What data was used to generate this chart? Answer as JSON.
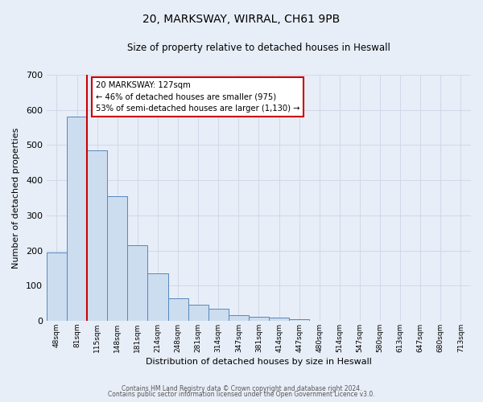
{
  "title": "20, MARKSWAY, WIRRAL, CH61 9PB",
  "subtitle": "Size of property relative to detached houses in Heswall",
  "xlabel": "Distribution of detached houses by size in Heswall",
  "ylabel": "Number of detached properties",
  "bin_labels": [
    "48sqm",
    "81sqm",
    "115sqm",
    "148sqm",
    "181sqm",
    "214sqm",
    "248sqm",
    "281sqm",
    "314sqm",
    "347sqm",
    "381sqm",
    "414sqm",
    "447sqm",
    "480sqm",
    "514sqm",
    "547sqm",
    "580sqm",
    "613sqm",
    "647sqm",
    "680sqm",
    "713sqm"
  ],
  "bar_heights": [
    195,
    580,
    485,
    355,
    215,
    135,
    65,
    45,
    35,
    15,
    12,
    10,
    5,
    0,
    0,
    0,
    0,
    0,
    0,
    0,
    0
  ],
  "bar_color": "#ccddf0",
  "bar_edge_color": "#5588bb",
  "ylim": [
    0,
    700
  ],
  "yticks": [
    0,
    100,
    200,
    300,
    400,
    500,
    600,
    700
  ],
  "red_line_color": "#cc0000",
  "annotation_line1": "20 MARKSWAY: 127sqm",
  "annotation_line2": "← 46% of detached houses are smaller (975)",
  "annotation_line3": "53% of semi-detached houses are larger (1,130) →",
  "annotation_box_color": "#ffffff",
  "annotation_box_edge": "#cc0000",
  "bg_color": "#e8eef8",
  "grid_color": "#d0d8e8",
  "footer_line1": "Contains HM Land Registry data © Crown copyright and database right 2024.",
  "footer_line2": "Contains public sector information licensed under the Open Government Licence v3.0."
}
